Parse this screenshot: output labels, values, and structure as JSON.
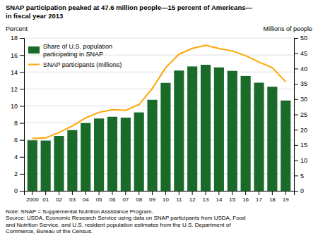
{
  "chart_data": {
    "type": "bar",
    "title": "SNAP participation peaked at 47.6 million people—15 percent of Americans—\nin fiscal year 2013",
    "ylabel": "Percent",
    "y2label": "Millions of people",
    "annotations": [
      "Note: SNAP = Supplemental Nutrition Assistance Program.\nSource: USDA, Economic Research Service using data on SNAP participants from USDA, Food\nand Nutrition Service, and U.S. resident population estimates from the U.S. Department of\nCommerce, Bureau of the Census."
    ],
    "categories": [
      "2000",
      "01",
      "02",
      "03",
      "04",
      "05",
      "06",
      "07",
      "08",
      "09",
      "10",
      "11",
      "12",
      "13",
      "14",
      "15",
      "16",
      "17",
      "18",
      "19"
    ],
    "series": [
      {
        "name": "Share of U.S. population\nparticipating in SNAP",
        "type": "bar",
        "color": "#1a6b2a",
        "values": [
          5.95,
          5.92,
          6.47,
          7.15,
          7.98,
          8.52,
          8.73,
          8.62,
          9.24,
          10.72,
          12.71,
          14.17,
          14.65,
          14.85,
          14.54,
          14.13,
          13.53,
          12.74,
          12.27,
          10.64
        ]
      },
      {
        "name": "SNAP participants (millions)",
        "type": "line",
        "color": "#FFA500",
        "axis": "y2",
        "values": [
          17.19,
          17.32,
          19.1,
          21.25,
          23.86,
          25.67,
          26.55,
          26.32,
          28.22,
          33.49,
          40.3,
          44.71,
          46.61,
          47.64,
          46.54,
          45.77,
          44.22,
          42.13,
          40.31,
          35.68
        ]
      }
    ],
    "ylim": [
      0,
      18
    ],
    "yticks": [
      0,
      2,
      4,
      6,
      8,
      10,
      12,
      14,
      16,
      18
    ],
    "y2lim": [
      0,
      50
    ],
    "y2ticks": [
      0,
      5,
      10,
      15,
      20,
      25,
      30,
      35,
      40,
      45,
      50
    ],
    "grid": true,
    "legend": "upper left"
  }
}
